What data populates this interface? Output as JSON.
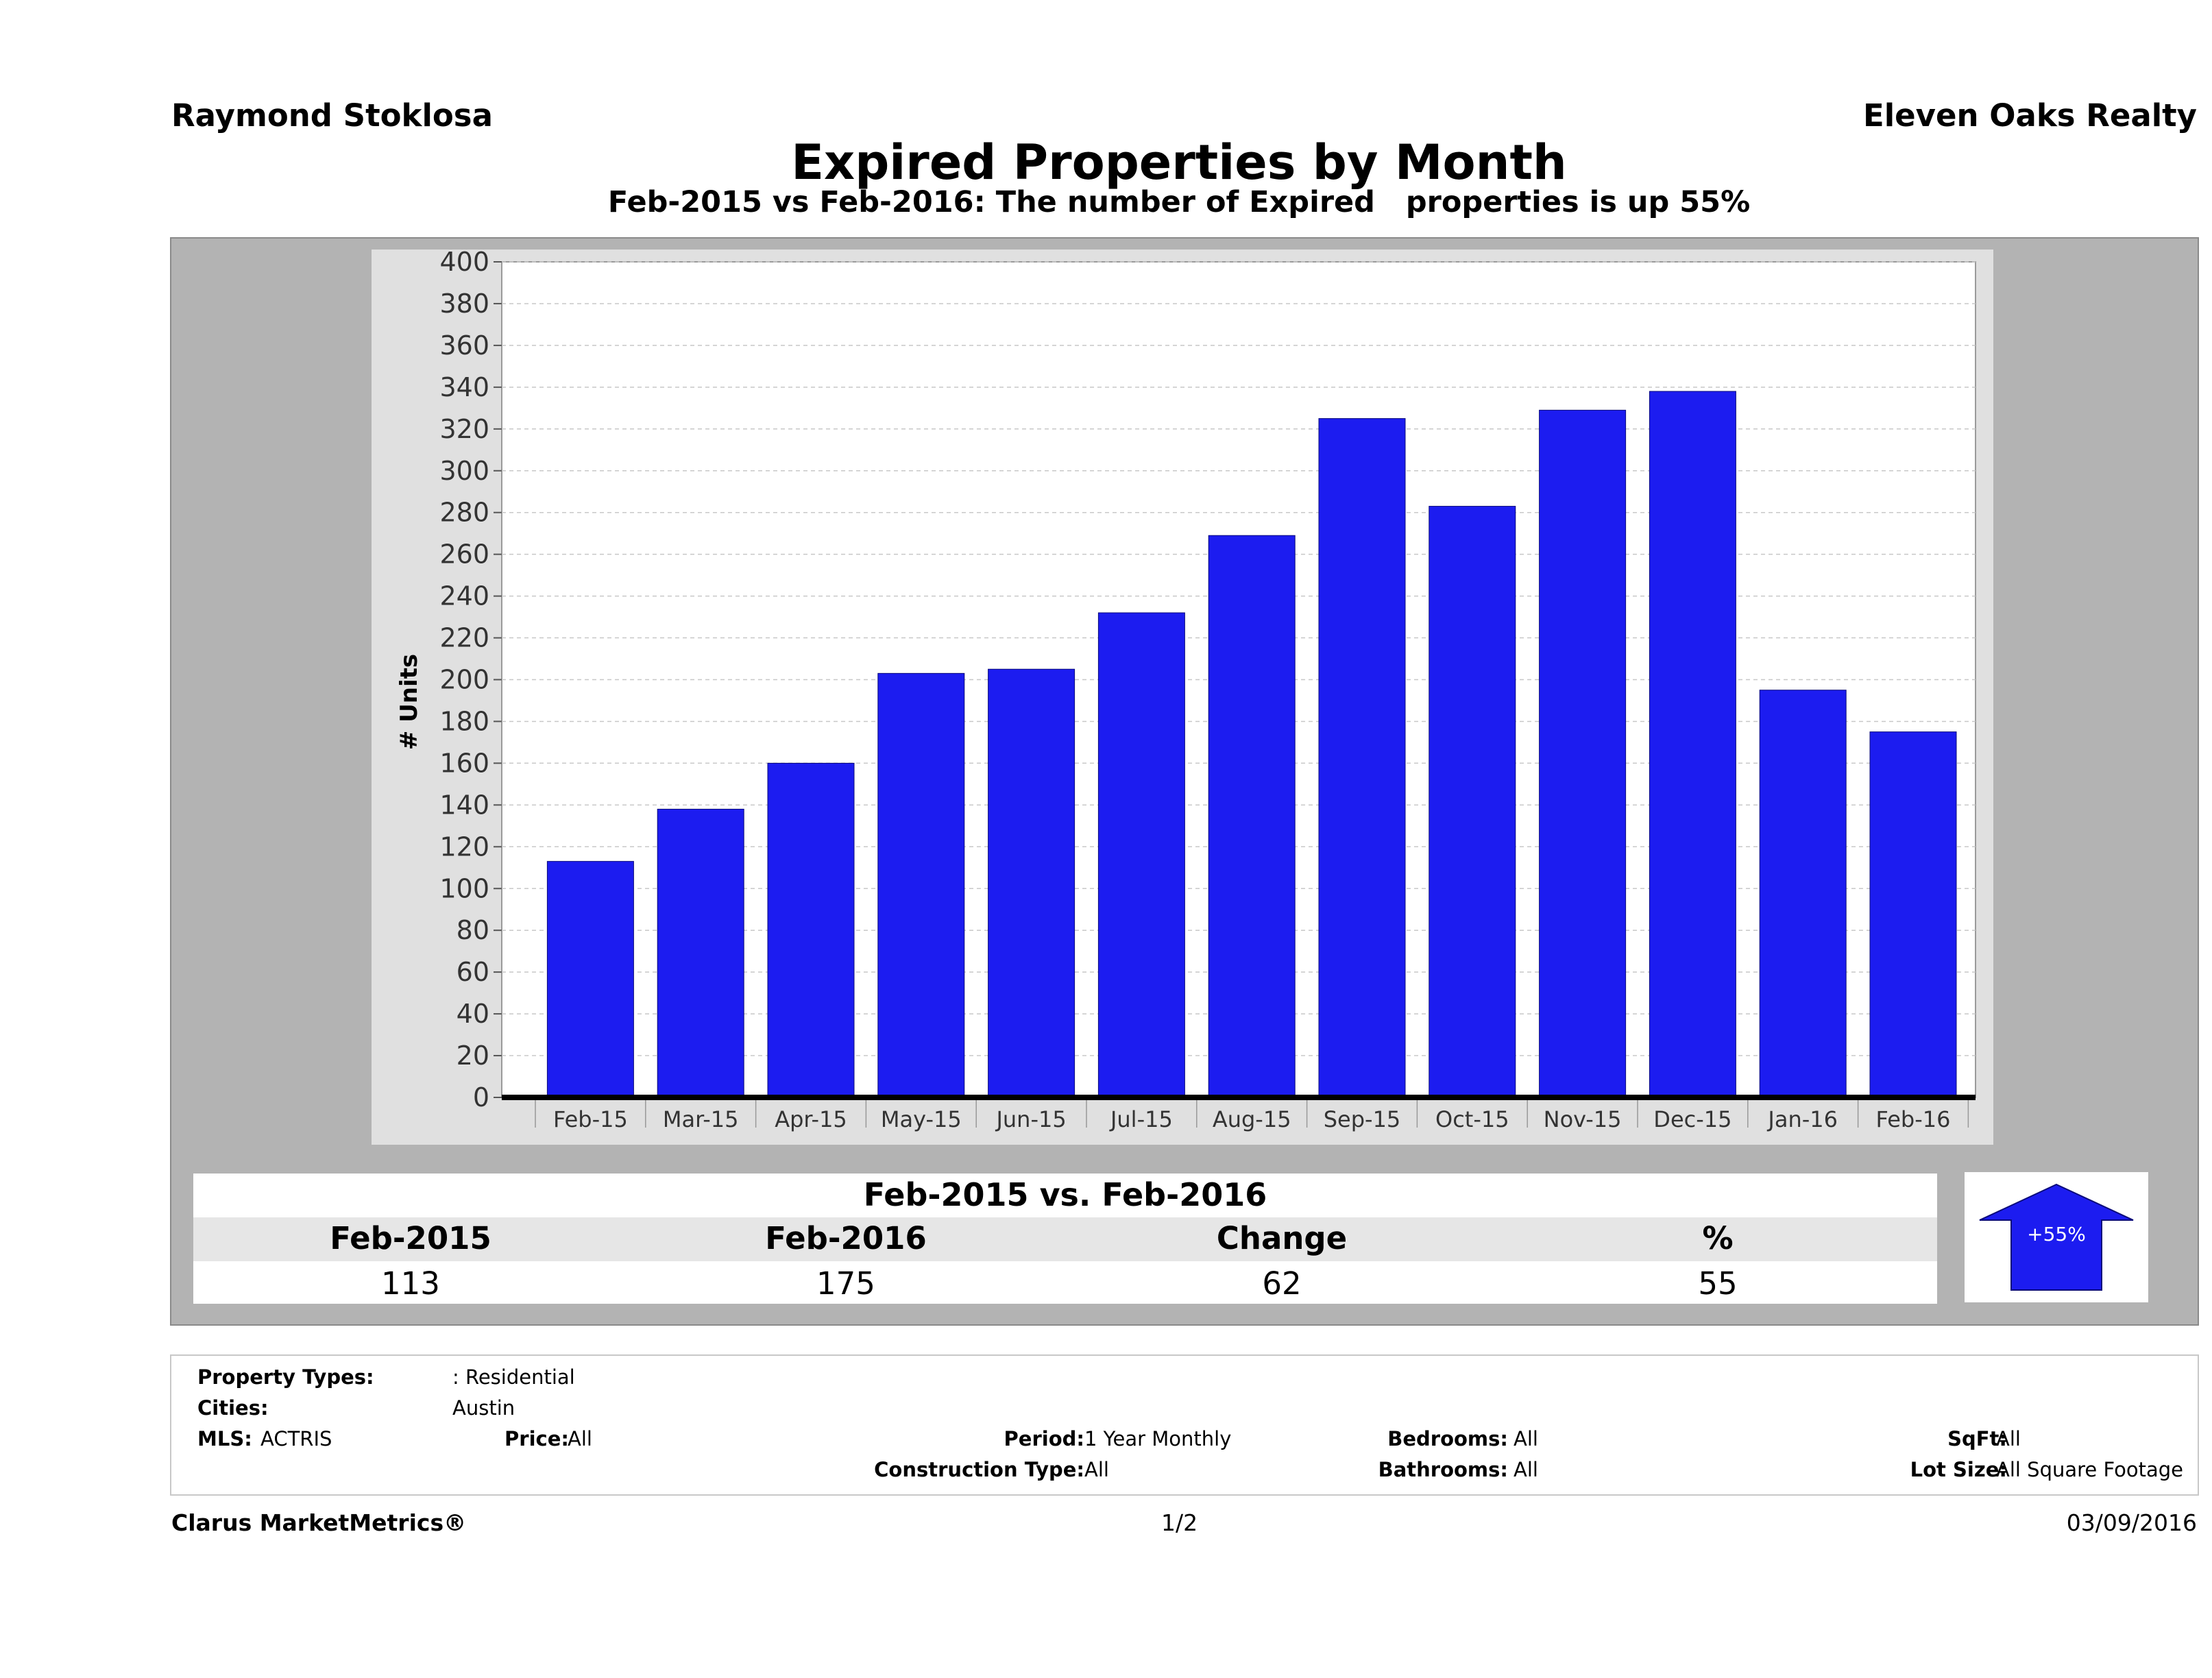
{
  "header": {
    "agent": "Raymond Stoklosa",
    "company": "Eleven Oaks Realty",
    "title": "Expired Properties by Month",
    "subtitle": "Feb-2015 vs Feb-2016: The number of Expired   properties is up 55%"
  },
  "chart_data": {
    "type": "bar",
    "title": "",
    "xlabel": "",
    "ylabel": "# Units",
    "ylim": [
      0,
      400
    ],
    "yticks": [
      0,
      20,
      40,
      60,
      80,
      100,
      120,
      140,
      160,
      180,
      200,
      220,
      240,
      260,
      280,
      300,
      320,
      340,
      360,
      380,
      400
    ],
    "grid": true,
    "categories": [
      "Feb-15",
      "Mar-15",
      "Apr-15",
      "May-15",
      "Jun-15",
      "Jul-15",
      "Aug-15",
      "Sep-15",
      "Oct-15",
      "Nov-15",
      "Dec-15",
      "Jan-16",
      "Feb-16"
    ],
    "values": [
      113,
      138,
      160,
      203,
      205,
      232,
      269,
      325,
      283,
      329,
      338,
      195,
      175
    ],
    "bar_color": "#1c1cf0"
  },
  "summary": {
    "title": "Feb-2015 vs. Feb-2016",
    "headers": [
      "Feb-2015",
      "Feb-2016",
      "Change",
      "%"
    ],
    "values": [
      "113",
      "175",
      "62",
      "55"
    ],
    "badge": "+55%",
    "badge_color": "#1c1cf0"
  },
  "filters": {
    "property_types_label": "Property Types:",
    "property_types": ": Residential",
    "cities_label": "Cities:",
    "cities": "Austin",
    "mls_label": "MLS:",
    "mls": "ACTRIS",
    "price_label": "Price:",
    "price": "All",
    "period_label": "Period:",
    "period": "1 Year Monthly",
    "construction_label": "Construction Type:",
    "construction": "All",
    "bedrooms_label": "Bedrooms:",
    "bedrooms": "All",
    "bathrooms_label": "Bathrooms:",
    "bathrooms": "All",
    "sqft_label": "SqFt:",
    "sqft": "All",
    "lot_label": "Lot Size:",
    "lot": "All Square Footage"
  },
  "footer": {
    "brand": "Clarus MarketMetrics®",
    "page": "1/2",
    "date": "03/09/2016"
  }
}
